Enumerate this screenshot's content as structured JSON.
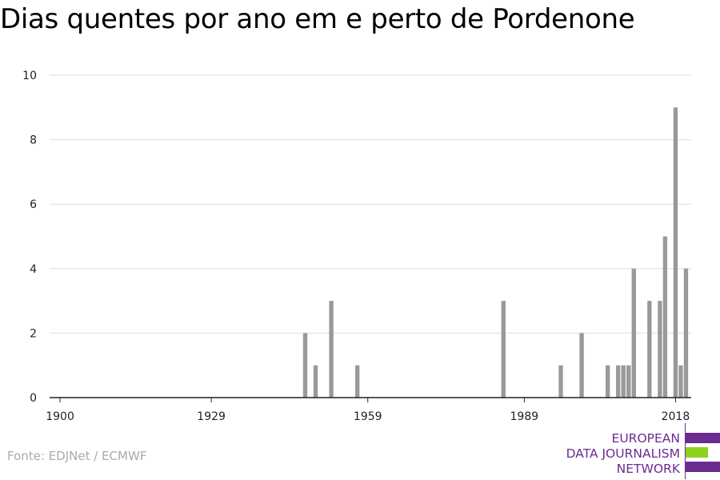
{
  "title": "Dias quentes por ano em e perto de Pordenone",
  "source": "Fonte: EDJNet / ECMWF",
  "logo": {
    "lines": [
      "EUROPEAN",
      "DATA JOURNALISM",
      "NETWORK"
    ],
    "colors": {
      "purple": "#6a2c91",
      "green": "#8fd11e"
    }
  },
  "chart_data": {
    "type": "bar",
    "title": "Dias quentes por ano em e perto de Pordenone",
    "xlabel": "",
    "ylabel": "",
    "xlim": [
      1898,
      2021
    ],
    "ylim": [
      0,
      10
    ],
    "x_ticks": [
      1900,
      1929,
      1959,
      1989,
      2018
    ],
    "y_ticks": [
      0,
      2,
      4,
      6,
      8,
      10
    ],
    "grid": true,
    "bar_color": "#999999",
    "series": [
      {
        "x": [
          1947,
          1949,
          1952,
          1957,
          1985,
          1996,
          2000,
          2005,
          2007,
          2008,
          2009,
          2010,
          2013,
          2015,
          2016,
          2018,
          2019,
          2020
        ],
        "values": [
          2,
          1,
          3,
          1,
          3,
          1,
          2,
          1,
          1,
          1,
          1,
          4,
          3,
          3,
          5,
          9,
          1,
          4
        ]
      }
    ]
  }
}
